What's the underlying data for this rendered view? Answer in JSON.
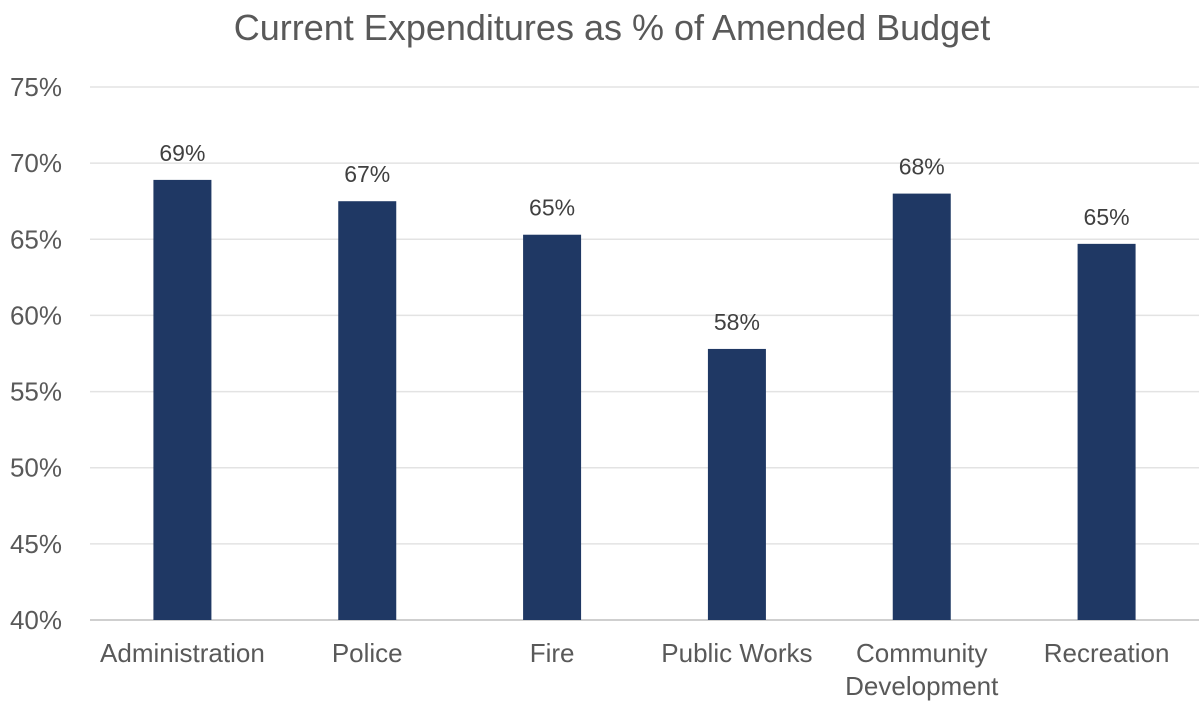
{
  "chart_data": {
    "type": "bar",
    "title": "Current Expenditures as % of Amended Budget",
    "categories": [
      "Administration",
      "Police",
      "Fire",
      "Public Works",
      "Community Development",
      "Recreation"
    ],
    "category_lines": [
      [
        "Administration"
      ],
      [
        "Police"
      ],
      [
        "Fire"
      ],
      [
        "Public Works"
      ],
      [
        "Community",
        "Development"
      ],
      [
        "Recreation"
      ]
    ],
    "values": [
      68.9,
      67.5,
      65.3,
      57.8,
      68.0,
      64.7
    ],
    "data_labels": [
      "69%",
      "67%",
      "65%",
      "58%",
      "68%",
      "65%"
    ],
    "ylim": [
      40,
      75
    ],
    "yticks": [
      40,
      45,
      50,
      55,
      60,
      65,
      70,
      75
    ],
    "ytick_labels": [
      "40%",
      "45%",
      "50%",
      "55%",
      "60%",
      "65%",
      "70%",
      "75%"
    ],
    "xlabel": "",
    "ylabel": "",
    "grid": true,
    "legend": "none",
    "colors": {
      "bar": "#1f3864",
      "grid": "#e3e3e3",
      "text": "#595959"
    }
  }
}
